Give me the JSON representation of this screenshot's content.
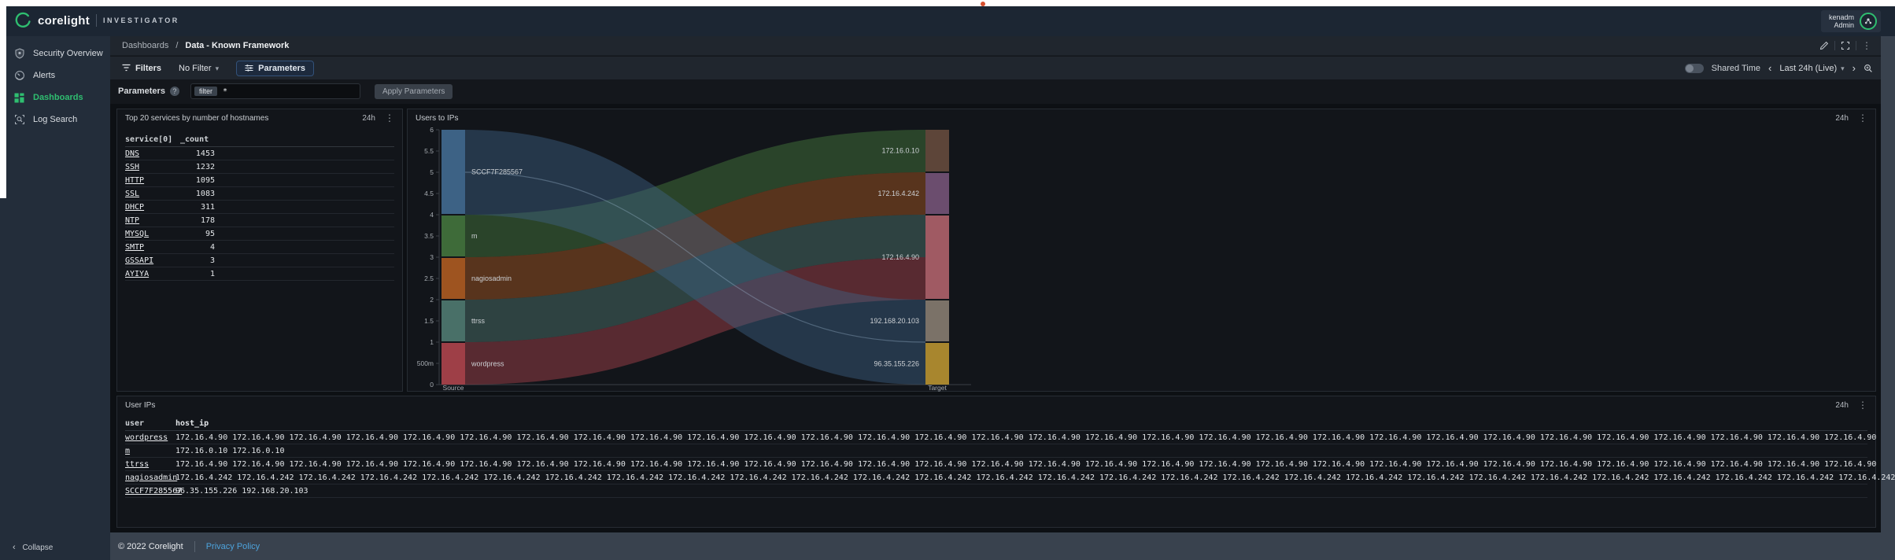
{
  "topbar": {
    "brand": "corelight",
    "product": "INVESTIGATOR",
    "user_name": "kenadm",
    "user_role": "Admin"
  },
  "sidebar": {
    "items": [
      {
        "label": "Security Overview",
        "active": false
      },
      {
        "label": "Alerts",
        "active": false
      },
      {
        "label": "Dashboards",
        "active": true
      },
      {
        "label": "Log Search",
        "active": false
      }
    ],
    "collapse_label": "Collapse"
  },
  "breadcrumb": {
    "section": "Dashboards",
    "separator": "/",
    "page": "Data - Known Framework"
  },
  "toolbar": {
    "filters_label": "Filters",
    "filter_value": "No Filter",
    "parameters_label": "Parameters",
    "shared_time_label": "Shared Time",
    "time_range": "Last 24h (Live)"
  },
  "parameters_bar": {
    "label": "Parameters",
    "chip": "filter",
    "value": "*",
    "apply_label": "Apply Parameters"
  },
  "panels": {
    "services": {
      "title": "Top 20 services by number of hostnames",
      "time_badge": "24h",
      "columns": [
        "service[0]",
        "_count"
      ],
      "rows": [
        [
          "DNS",
          "1453"
        ],
        [
          "SSH",
          "1232"
        ],
        [
          "HTTP",
          "1095"
        ],
        [
          "SSL",
          "1083"
        ],
        [
          "DHCP",
          "311"
        ],
        [
          "NTP",
          "178"
        ],
        [
          "MYSQL",
          "95"
        ],
        [
          "SMTP",
          "4"
        ],
        [
          "GSSAPI",
          "3"
        ],
        [
          "AYIYA",
          "1"
        ]
      ]
    },
    "sankey": {
      "title": "Users to IPs",
      "time_badge": "24h"
    },
    "user_ips": {
      "title": "User IPs",
      "time_badge": "24h",
      "columns": [
        "user",
        "host_ip"
      ],
      "rows": [
        {
          "user": "wordpress",
          "ips": [
            {
              "ip": "172.16.4.90",
              "count": 30
            }
          ]
        },
        {
          "user": "m",
          "ips": [
            {
              "ip": "172.16.0.10",
              "count": 2
            }
          ]
        },
        {
          "user": "ttrss",
          "ips": [
            {
              "ip": "172.16.4.90",
              "count": 30
            }
          ]
        },
        {
          "user": "nagiosadmin",
          "ips": [
            {
              "ip": "172.16.4.242",
              "count": 28
            }
          ]
        },
        {
          "user": "SCCF7F285567",
          "ips": [
            {
              "ip": "96.35.155.226",
              "count": 1
            },
            {
              "ip": "192.168.20.103",
              "count": 1
            }
          ]
        }
      ]
    }
  },
  "chart_data": {
    "type": "sankey",
    "title": "Users to IPs",
    "axis": {
      "y_min": 0,
      "y_max": 6,
      "tick_step": 0.5,
      "tick_labels": [
        "0",
        "500m",
        "1",
        "1.5",
        "2",
        "2.5",
        "3",
        "3.5",
        "4",
        "4.5",
        "5",
        "5.5",
        "6"
      ],
      "x_left_label": "Source",
      "x_right_label": "Target"
    },
    "nodes": {
      "source": [
        {
          "name": "SCCF7F285567",
          "v0": 4,
          "v1": 6,
          "color": "#3d6285"
        },
        {
          "name": "m",
          "v0": 3,
          "v1": 4,
          "color": "#3e6b39"
        },
        {
          "name": "nagiosadmin",
          "v0": 2,
          "v1": 3,
          "color": "#9e5420"
        },
        {
          "name": "ttrss",
          "v0": 1,
          "v1": 2,
          "color": "#497068"
        },
        {
          "name": "wordpress",
          "v0": 0,
          "v1": 1,
          "color": "#9e3f47"
        }
      ],
      "target": [
        {
          "name": "172.16.0.10",
          "v0": 5,
          "v1": 6,
          "color": "#5d4539"
        },
        {
          "name": "172.16.4.242",
          "v0": 4,
          "v1": 5,
          "color": "#6b4d6e"
        },
        {
          "name": "172.16.4.90",
          "v0": 2,
          "v1": 4,
          "color": "#a05a63"
        },
        {
          "name": "192.168.20.103",
          "v0": 1,
          "v1": 2,
          "color": "#7b7268"
        },
        {
          "name": "96.35.155.226",
          "v0": 0,
          "v1": 1,
          "color": "#a8862e"
        }
      ]
    },
    "links": [
      {
        "source": "m",
        "target": "172.16.0.10",
        "value": 1,
        "s0": 3,
        "s1": 4,
        "t0": 5,
        "t1": 6,
        "color": "#3e6b39",
        "opacity": 0.55
      },
      {
        "source": "nagiosadmin",
        "target": "172.16.4.242",
        "value": 1,
        "s0": 2,
        "s1": 3,
        "t0": 4,
        "t1": 5,
        "color": "#9e5420",
        "opacity": 0.5
      },
      {
        "source": "ttrss",
        "target": "172.16.4.90",
        "value": 1,
        "s0": 1,
        "s1": 2,
        "t0": 3,
        "t1": 4,
        "color": "#497068",
        "opacity": 0.5
      },
      {
        "source": "wordpress",
        "target": "172.16.4.90",
        "value": 1,
        "s0": 0,
        "s1": 1,
        "t0": 2,
        "t1": 3,
        "color": "#9e3f47",
        "opacity": 0.5
      },
      {
        "source": "SCCF7F285567",
        "target": "192.168.20.103",
        "value": 1,
        "s0": 5,
        "s1": 6,
        "t0": 1,
        "t1": 2,
        "color": "#3d6285",
        "opacity": 0.45
      },
      {
        "source": "SCCF7F285567",
        "target": "96.35.155.226",
        "value": 1,
        "s0": 4,
        "s1": 5,
        "t0": 0,
        "t1": 1,
        "color": "#3d6285",
        "opacity": 0.45
      }
    ]
  },
  "footer": {
    "copyright": "© 2022 Corelight",
    "privacy": "Privacy Policy"
  }
}
